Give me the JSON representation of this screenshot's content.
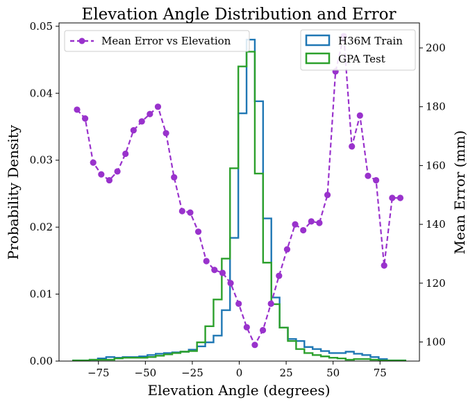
{
  "chart_data": {
    "type": "histogram+line",
    "title": "Elevation Angle Distribution and Error",
    "xlabel": "Elevation Angle (degrees)",
    "ylabel_left": "Probability Density",
    "ylabel_right": "Mean Error (mm)",
    "xlim": [
      -96,
      96
    ],
    "ylim_left": [
      0,
      0.0505
    ],
    "ylim_right": [
      93.5,
      208.5
    ],
    "x_ticks": [
      -75,
      -50,
      -25,
      0,
      25,
      50,
      75
    ],
    "x_tick_labels": [
      "−75",
      "−50",
      "−25",
      "0",
      "25",
      "50",
      "75"
    ],
    "y_left_ticks": [
      0,
      0.01,
      0.02,
      0.03,
      0.04,
      0.05
    ],
    "y_left_tick_labels": [
      "0.00",
      "0.01",
      "0.02",
      "0.03",
      "0.04",
      "0.05"
    ],
    "y_right_ticks": [
      100,
      120,
      140,
      160,
      180,
      200
    ],
    "y_right_tick_labels": [
      "100",
      "120",
      "140",
      "160",
      "180",
      "200"
    ],
    "bin_edges": [
      -88.5,
      -84.1,
      -79.7,
      -75.3,
      -70.9,
      -66.5,
      -62.1,
      -57.7,
      -53.3,
      -48.9,
      -44.5,
      -40.1,
      -35.7,
      -31.3,
      -26.9,
      -22.5,
      -18.1,
      -13.7,
      -9.3,
      -4.9,
      -0.5,
      3.9,
      8.3,
      12.7,
      17.1,
      21.5,
      25.9,
      30.3,
      34.7,
      39.1,
      43.5,
      47.9,
      52.3,
      56.7,
      61.1,
      65.5,
      69.9,
      74.3,
      78.7,
      83.1,
      88.5
    ],
    "histograms": [
      {
        "name": "H36M Train",
        "color": "#1f77b4",
        "values": [
          0.0001,
          0.0001,
          0.0002,
          0.0004,
          0.0006,
          0.0005,
          0.0006,
          0.0006,
          0.0007,
          0.0009,
          0.0011,
          0.0012,
          0.0013,
          0.0014,
          0.0017,
          0.0022,
          0.0028,
          0.0038,
          0.0076,
          0.0184,
          0.037,
          0.048,
          0.0388,
          0.0213,
          0.0095,
          0.005,
          0.0033,
          0.003,
          0.0021,
          0.0018,
          0.0015,
          0.0012,
          0.0012,
          0.0014,
          0.0011,
          0.0009,
          0.0006,
          0.0003,
          0.0001,
          0.0001
        ]
      },
      {
        "name": "GPA Test",
        "color": "#2ca02c",
        "values": [
          0.0001,
          0.0001,
          0.0002,
          0.0002,
          0.0002,
          0.0004,
          0.0005,
          0.0005,
          0.0005,
          0.0006,
          0.0008,
          0.001,
          0.0012,
          0.0014,
          0.0015,
          0.0028,
          0.0052,
          0.0092,
          0.0153,
          0.0288,
          0.044,
          0.0462,
          0.028,
          0.0147,
          0.0085,
          0.005,
          0.003,
          0.0018,
          0.0012,
          0.0009,
          0.0007,
          0.0005,
          0.0004,
          0.0002,
          0.0003,
          0.0003,
          0.0002,
          0.0001,
          0.0001,
          0.0001
        ]
      }
    ],
    "error_series": {
      "name": "Mean Error vs Elevation",
      "color": "#9932cc",
      "x": [
        -86.4,
        -82.1,
        -77.8,
        -73.5,
        -69.2,
        -64.9,
        -60.6,
        -56.3,
        -51.9,
        -47.6,
        -43.3,
        -39.0,
        -34.7,
        -30.4,
        -26.1,
        -21.8,
        -17.5,
        -13.2,
        -8.9,
        -4.6,
        -0.3,
        4.0,
        8.3,
        12.6,
        16.9,
        21.2,
        25.5,
        29.8,
        34.1,
        38.4,
        42.7,
        47.0,
        51.3,
        55.7,
        60.0,
        64.3,
        68.6,
        72.9,
        77.2,
        81.5,
        85.8
      ],
      "y": [
        179,
        176,
        161,
        157,
        155,
        158,
        164,
        172,
        175,
        177.5,
        180,
        171,
        156,
        144.5,
        144,
        137.5,
        127.5,
        124.5,
        123.5,
        120,
        113,
        105,
        99,
        104,
        113,
        122.5,
        131.5,
        140,
        138,
        141,
        140.5,
        150,
        192,
        204,
        166.5,
        177,
        156.5,
        155,
        126,
        149,
        149
      ]
    },
    "legends": [
      {
        "position": "upper-left",
        "entries": [
          "Mean Error vs Elevation"
        ]
      },
      {
        "position": "upper-right",
        "entries": [
          "H36M Train",
          "GPA Test"
        ]
      }
    ]
  }
}
